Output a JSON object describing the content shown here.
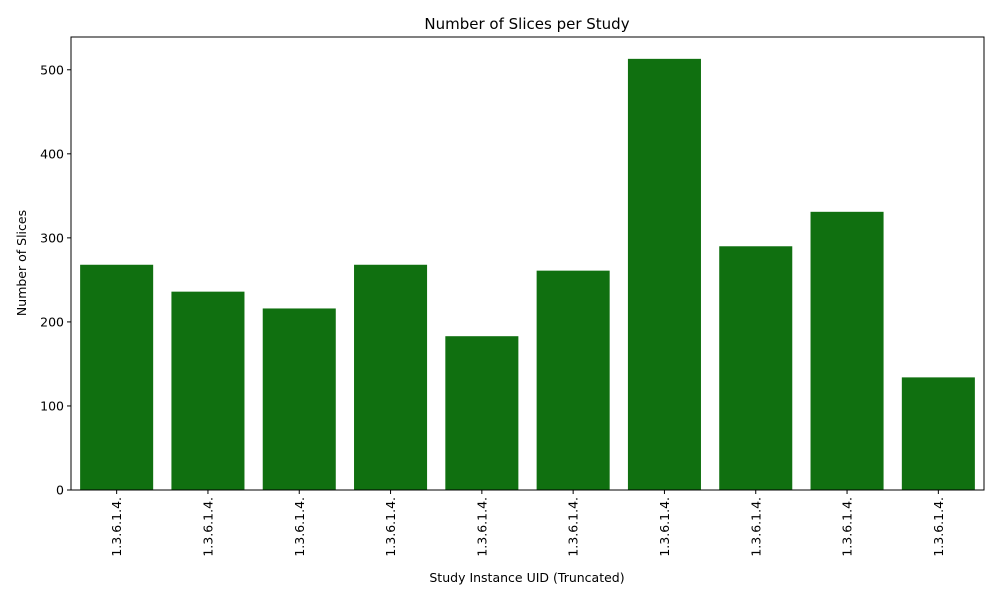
{
  "chart_data": {
    "type": "bar",
    "title": "Number of Slices per Study",
    "xlabel": "Study Instance UID (Truncated)",
    "ylabel": "Number of Slices",
    "categories": [
      "1.3.6.1.4.",
      "1.3.6.1.4.",
      "1.3.6.1.4.",
      "1.3.6.1.4.",
      "1.3.6.1.4.",
      "1.3.6.1.4.",
      "1.3.6.1.4.",
      "1.3.6.1.4.",
      "1.3.6.1.4.",
      "1.3.6.1.4."
    ],
    "values": [
      268,
      236,
      216,
      268,
      183,
      261,
      513,
      290,
      331,
      134
    ],
    "ylim": [
      0,
      539
    ],
    "yticks": [
      0,
      100,
      200,
      300,
      400,
      500
    ],
    "grid": false,
    "bar_color": "#107010"
  }
}
